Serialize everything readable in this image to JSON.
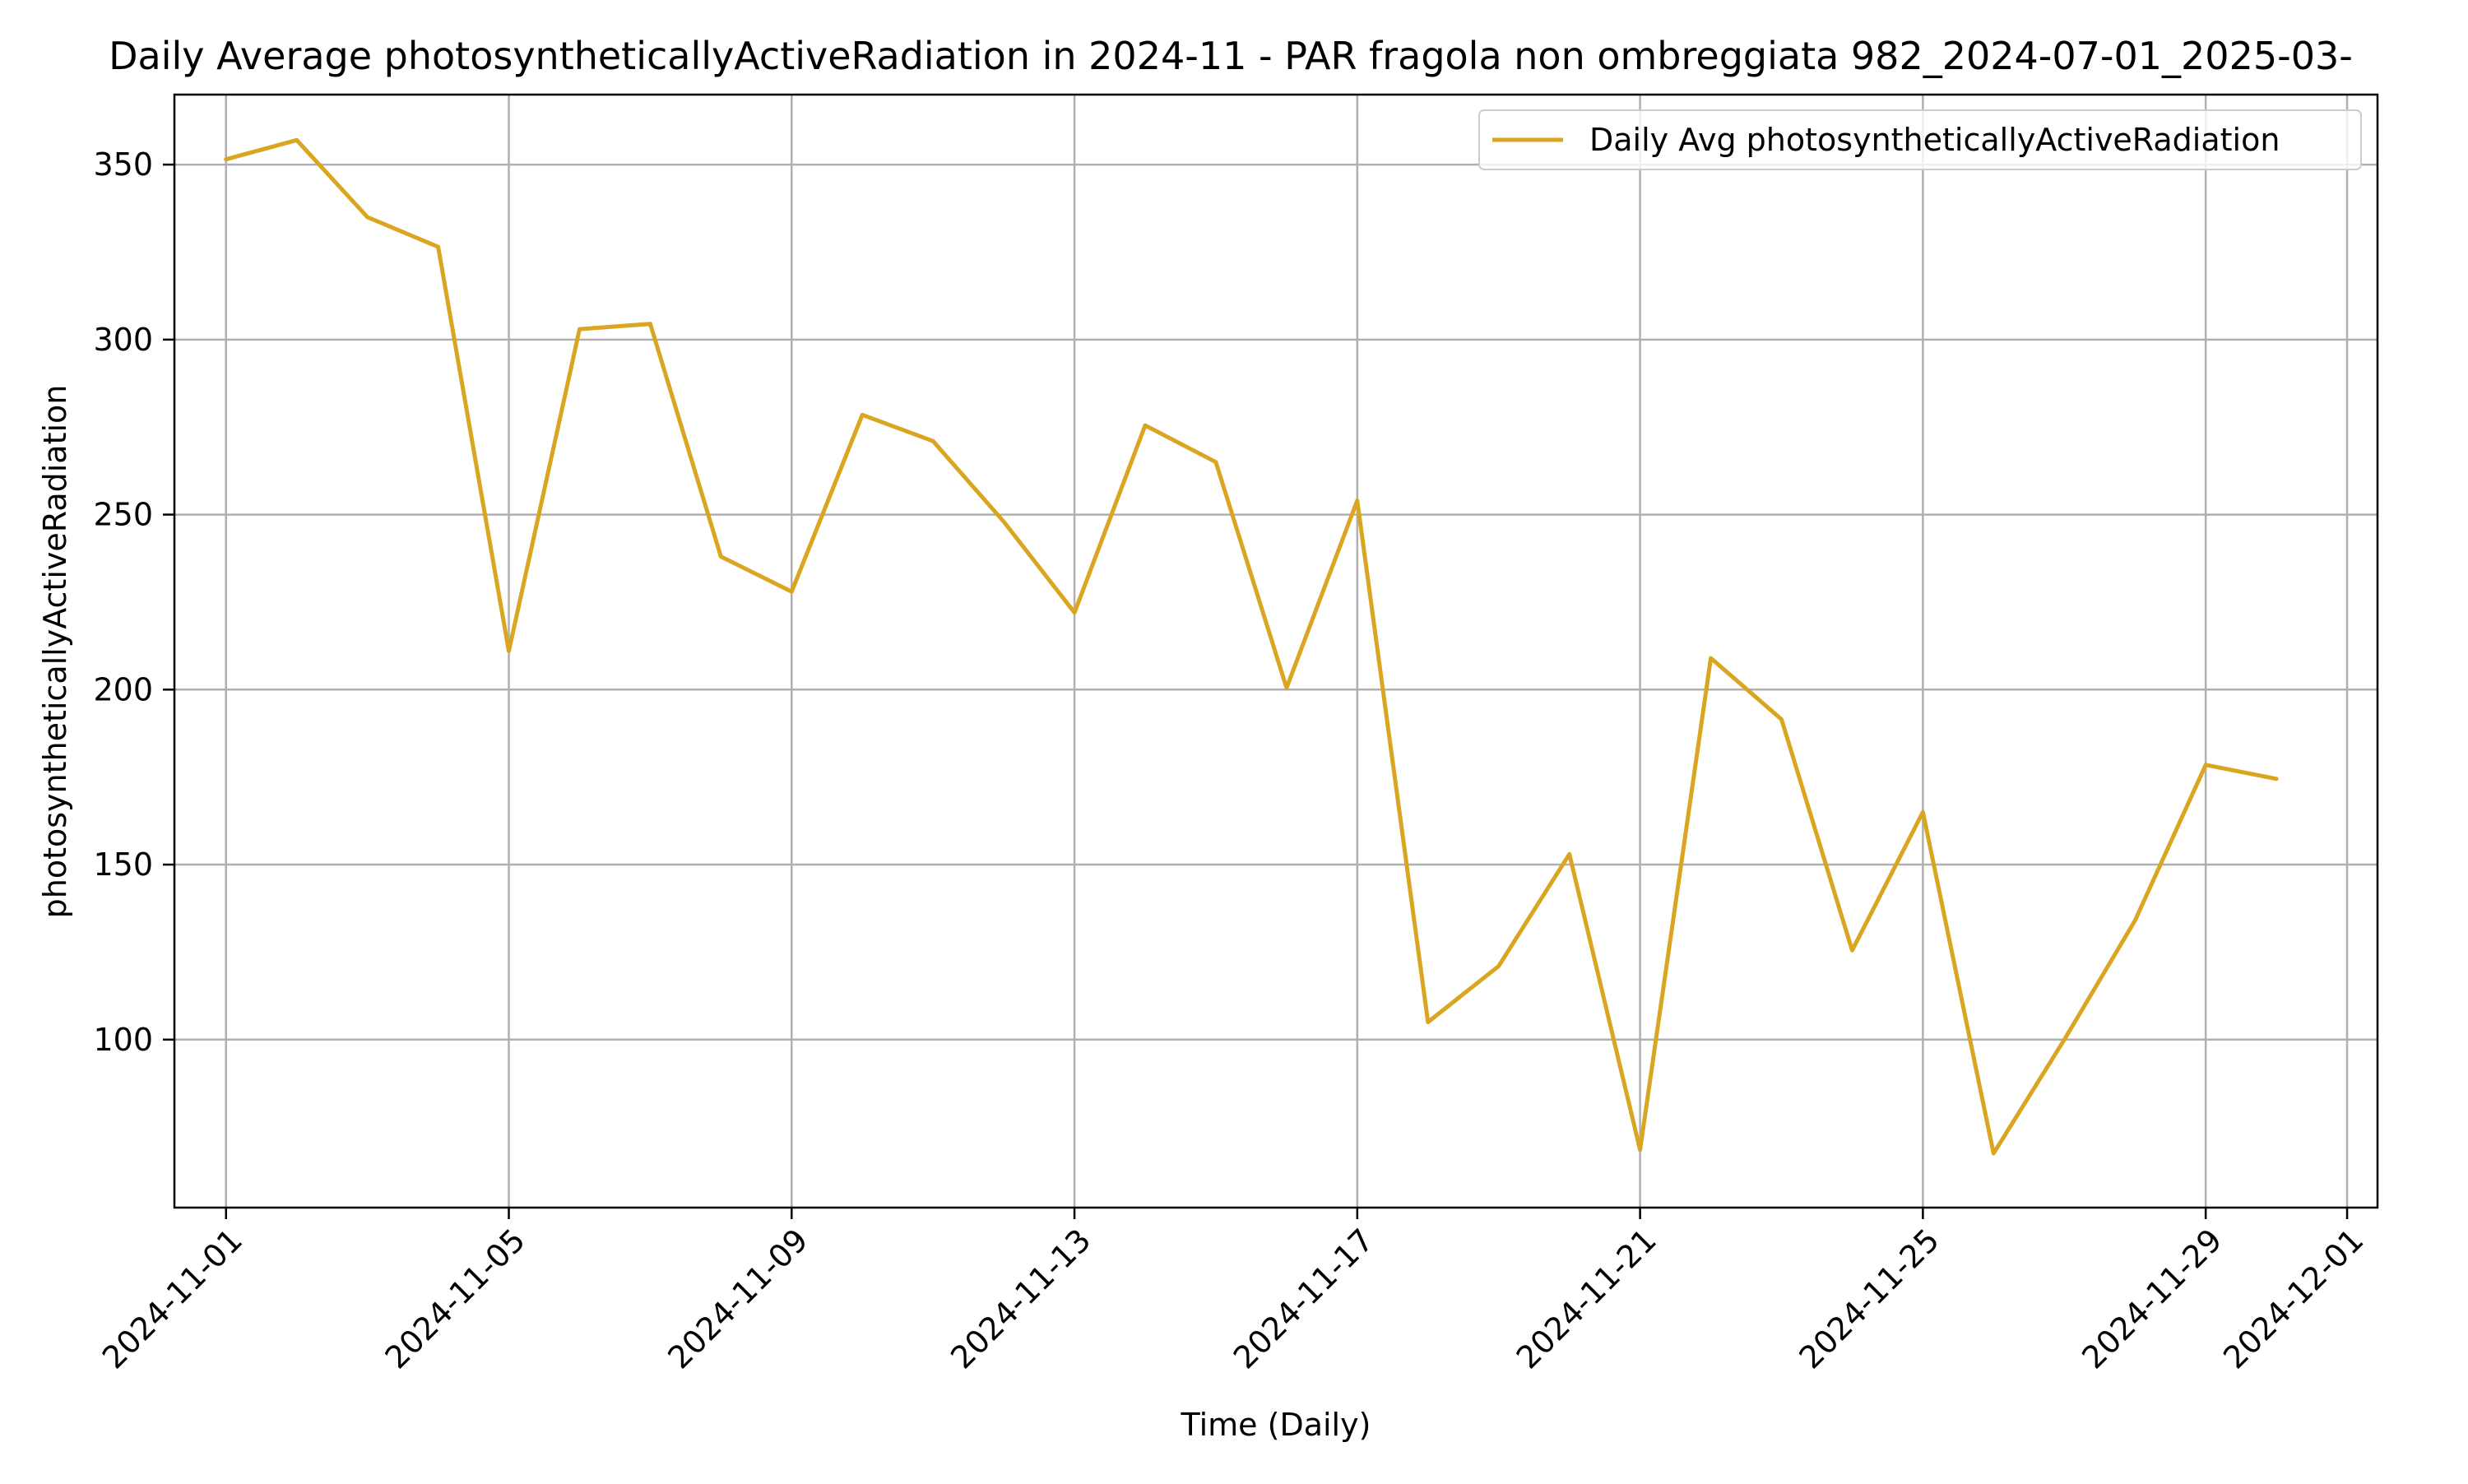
{
  "chart_data": {
    "type": "line",
    "title": "Daily Average photosyntheticallyActiveRadiation in 2024-11 - PAR fragola non ombreggiata 982_2024-07-01_2025-03-",
    "xlabel": "Time (Daily)",
    "ylabel": "photosyntheticallyActiveRadiation",
    "grid": true,
    "legend_position": "top-right",
    "x_start": "2024-11-01",
    "x_range_days": [
      -0.73,
      30.43
    ],
    "ylim": [
      52,
      370
    ],
    "x_ticks": [
      {
        "day": 0,
        "label": "2024-11-01"
      },
      {
        "day": 4,
        "label": "2024-11-05"
      },
      {
        "day": 8,
        "label": "2024-11-09"
      },
      {
        "day": 12,
        "label": "2024-11-13"
      },
      {
        "day": 16,
        "label": "2024-11-17"
      },
      {
        "day": 20,
        "label": "2024-11-21"
      },
      {
        "day": 24,
        "label": "2024-11-25"
      },
      {
        "day": 28,
        "label": "2024-11-29"
      },
      {
        "day": 30,
        "label": "2024-12-01"
      }
    ],
    "y_ticks": [
      {
        "value": 100,
        "label": "100"
      },
      {
        "value": 150,
        "label": "150"
      },
      {
        "value": 200,
        "label": "200"
      },
      {
        "value": 250,
        "label": "250"
      },
      {
        "value": 300,
        "label": "300"
      },
      {
        "value": 350,
        "label": "350"
      }
    ],
    "series": [
      {
        "name": "Daily Avg photosyntheticallyActiveRadiation",
        "color": "#DAA520",
        "x": [
          "2024-11-01",
          "2024-11-02",
          "2024-11-03",
          "2024-11-04",
          "2024-11-05",
          "2024-11-06",
          "2024-11-07",
          "2024-11-08",
          "2024-11-09",
          "2024-11-10",
          "2024-11-11",
          "2024-11-12",
          "2024-11-13",
          "2024-11-14",
          "2024-11-15",
          "2024-11-16",
          "2024-11-17",
          "2024-11-18",
          "2024-11-19",
          "2024-11-20",
          "2024-11-21",
          "2024-11-22",
          "2024-11-23",
          "2024-11-24",
          "2024-11-25",
          "2024-11-26",
          "2024-11-27",
          "2024-11-28",
          "2024-11-29",
          "2024-11-30"
        ],
        "values": [
          351.5,
          357.0,
          335.0,
          326.5,
          211.0,
          303.0,
          304.5,
          238.0,
          228.0,
          278.5,
          271.0,
          248.0,
          222.0,
          275.5,
          265.0,
          200.5,
          254.0,
          105.0,
          121.0,
          153.0,
          68.5,
          209.0,
          191.5,
          125.5,
          165.0,
          67.5,
          100.0,
          134.0,
          178.5,
          174.5
        ]
      }
    ]
  }
}
